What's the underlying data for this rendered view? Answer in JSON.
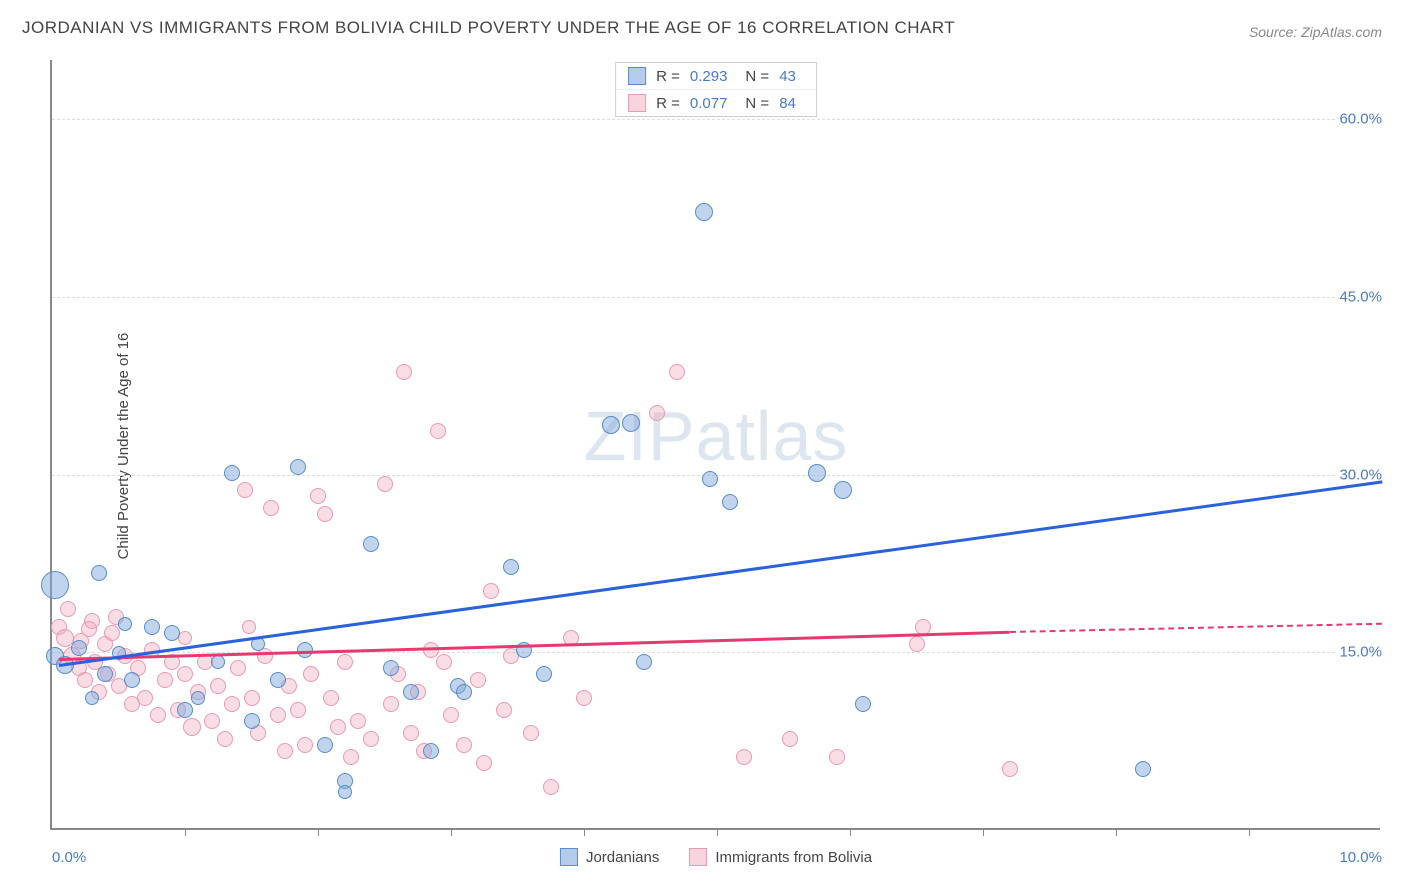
{
  "title": "JORDANIAN VS IMMIGRANTS FROM BOLIVIA CHILD POVERTY UNDER THE AGE OF 16 CORRELATION CHART",
  "source": "Source: ZipAtlas.com",
  "ylabel": "Child Poverty Under the Age of 16",
  "watermark": "ZIPatlas",
  "chart": {
    "type": "scatter",
    "background_color": "#ffffff",
    "grid_color": "#dddddd",
    "axis_color": "#888888",
    "xlim": [
      0,
      10
    ],
    "ylim": [
      0,
      65
    ],
    "xticks": [
      0,
      1,
      2,
      3,
      4,
      5,
      6,
      7,
      8,
      9,
      10
    ],
    "xtick_labels_shown": {
      "0": "0.0%",
      "10": "10.0%"
    },
    "yticks": [
      15,
      30,
      45,
      60
    ],
    "ytick_labels": [
      "15.0%",
      "30.0%",
      "45.0%",
      "60.0%"
    ],
    "label_fontsize": 15,
    "tick_color": "#4a7ac7"
  },
  "series": {
    "jordanians": {
      "label": "Jordanians",
      "color_fill": "rgba(130,170,220,0.5)",
      "color_stroke": "#5a8cc7",
      "trend_color": "#2962d9",
      "R": "0.293",
      "N": "43",
      "trend": {
        "x0": 0.05,
        "y0": 14.0,
        "x1": 10.0,
        "y1": 29.5
      },
      "points": [
        {
          "x": 0.02,
          "y": 20.5,
          "r": 14
        },
        {
          "x": 0.02,
          "y": 14.5,
          "r": 9
        },
        {
          "x": 0.1,
          "y": 13.8,
          "r": 9
        },
        {
          "x": 0.2,
          "y": 15.2,
          "r": 8
        },
        {
          "x": 0.35,
          "y": 21.5,
          "r": 8
        },
        {
          "x": 0.4,
          "y": 13.0,
          "r": 8
        },
        {
          "x": 0.5,
          "y": 14.8,
          "r": 7
        },
        {
          "x": 0.6,
          "y": 12.5,
          "r": 8
        },
        {
          "x": 0.75,
          "y": 17.0,
          "r": 8
        },
        {
          "x": 0.9,
          "y": 16.5,
          "r": 8
        },
        {
          "x": 1.0,
          "y": 10.0,
          "r": 8
        },
        {
          "x": 1.1,
          "y": 11.0,
          "r": 7
        },
        {
          "x": 1.25,
          "y": 14.0,
          "r": 7
        },
        {
          "x": 1.35,
          "y": 30.0,
          "r": 8
        },
        {
          "x": 1.5,
          "y": 9.0,
          "r": 8
        },
        {
          "x": 1.7,
          "y": 12.5,
          "r": 8
        },
        {
          "x": 1.85,
          "y": 30.5,
          "r": 8
        },
        {
          "x": 1.9,
          "y": 15.0,
          "r": 8
        },
        {
          "x": 2.05,
          "y": 7.0,
          "r": 8
        },
        {
          "x": 2.2,
          "y": 4.0,
          "r": 8
        },
        {
          "x": 2.2,
          "y": 3.0,
          "r": 7
        },
        {
          "x": 2.4,
          "y": 24.0,
          "r": 8
        },
        {
          "x": 2.55,
          "y": 13.5,
          "r": 8
        },
        {
          "x": 2.7,
          "y": 11.5,
          "r": 8
        },
        {
          "x": 2.85,
          "y": 6.5,
          "r": 8
        },
        {
          "x": 3.05,
          "y": 12.0,
          "r": 8
        },
        {
          "x": 3.1,
          "y": 11.5,
          "r": 8
        },
        {
          "x": 3.45,
          "y": 22.0,
          "r": 8
        },
        {
          "x": 3.55,
          "y": 15.0,
          "r": 8
        },
        {
          "x": 3.7,
          "y": 13.0,
          "r": 8
        },
        {
          "x": 4.2,
          "y": 34.0,
          "r": 9
        },
        {
          "x": 4.35,
          "y": 34.2,
          "r": 9
        },
        {
          "x": 4.45,
          "y": 14.0,
          "r": 8
        },
        {
          "x": 4.9,
          "y": 52.0,
          "r": 9
        },
        {
          "x": 4.95,
          "y": 29.5,
          "r": 8
        },
        {
          "x": 5.1,
          "y": 27.5,
          "r": 8
        },
        {
          "x": 5.75,
          "y": 30.0,
          "r": 9
        },
        {
          "x": 5.95,
          "y": 28.5,
          "r": 9
        },
        {
          "x": 6.1,
          "y": 10.5,
          "r": 8
        },
        {
          "x": 8.2,
          "y": 5.0,
          "r": 8
        },
        {
          "x": 0.3,
          "y": 11.0,
          "r": 7
        },
        {
          "x": 0.55,
          "y": 17.2,
          "r": 7
        },
        {
          "x": 1.55,
          "y": 15.5,
          "r": 7
        }
      ]
    },
    "bolivia": {
      "label": "Immigrants from Bolivia",
      "color_fill": "rgba(240,170,190,0.4)",
      "color_stroke": "#e89ab0",
      "trend_color": "#e6396f",
      "R": "0.077",
      "N": "84",
      "trend_solid": {
        "x0": 0.05,
        "y0": 14.5,
        "x1": 7.2,
        "y1": 16.8
      },
      "trend_dash": {
        "x0": 7.2,
        "y0": 16.8,
        "x1": 10.0,
        "y1": 17.5
      },
      "points": [
        {
          "x": 0.05,
          "y": 17.0,
          "r": 8
        },
        {
          "x": 0.1,
          "y": 16.0,
          "r": 9
        },
        {
          "x": 0.15,
          "y": 14.5,
          "r": 9
        },
        {
          "x": 0.2,
          "y": 13.5,
          "r": 8
        },
        {
          "x": 0.22,
          "y": 15.8,
          "r": 8
        },
        {
          "x": 0.25,
          "y": 12.5,
          "r": 8
        },
        {
          "x": 0.3,
          "y": 17.5,
          "r": 8
        },
        {
          "x": 0.32,
          "y": 14.0,
          "r": 8
        },
        {
          "x": 0.35,
          "y": 11.5,
          "r": 8
        },
        {
          "x": 0.4,
          "y": 15.5,
          "r": 8
        },
        {
          "x": 0.42,
          "y": 13.0,
          "r": 8
        },
        {
          "x": 0.45,
          "y": 16.5,
          "r": 8
        },
        {
          "x": 0.5,
          "y": 12.0,
          "r": 8
        },
        {
          "x": 0.55,
          "y": 14.5,
          "r": 8
        },
        {
          "x": 0.6,
          "y": 10.5,
          "r": 8
        },
        {
          "x": 0.65,
          "y": 13.5,
          "r": 8
        },
        {
          "x": 0.7,
          "y": 11.0,
          "r": 8
        },
        {
          "x": 0.75,
          "y": 15.0,
          "r": 8
        },
        {
          "x": 0.8,
          "y": 9.5,
          "r": 8
        },
        {
          "x": 0.85,
          "y": 12.5,
          "r": 8
        },
        {
          "x": 0.9,
          "y": 14.0,
          "r": 8
        },
        {
          "x": 0.95,
          "y": 10.0,
          "r": 8
        },
        {
          "x": 1.0,
          "y": 13.0,
          "r": 8
        },
        {
          "x": 1.05,
          "y": 8.5,
          "r": 9
        },
        {
          "x": 1.1,
          "y": 11.5,
          "r": 8
        },
        {
          "x": 1.15,
          "y": 14.0,
          "r": 8
        },
        {
          "x": 1.2,
          "y": 9.0,
          "r": 8
        },
        {
          "x": 1.25,
          "y": 12.0,
          "r": 8
        },
        {
          "x": 1.3,
          "y": 7.5,
          "r": 8
        },
        {
          "x": 1.35,
          "y": 10.5,
          "r": 8
        },
        {
          "x": 1.4,
          "y": 13.5,
          "r": 8
        },
        {
          "x": 1.45,
          "y": 28.5,
          "r": 8
        },
        {
          "x": 1.5,
          "y": 11.0,
          "r": 8
        },
        {
          "x": 1.55,
          "y": 8.0,
          "r": 8
        },
        {
          "x": 1.6,
          "y": 14.5,
          "r": 8
        },
        {
          "x": 1.65,
          "y": 27.0,
          "r": 8
        },
        {
          "x": 1.7,
          "y": 9.5,
          "r": 8
        },
        {
          "x": 1.75,
          "y": 6.5,
          "r": 8
        },
        {
          "x": 1.78,
          "y": 12.0,
          "r": 8
        },
        {
          "x": 1.85,
          "y": 10.0,
          "r": 8
        },
        {
          "x": 1.9,
          "y": 7.0,
          "r": 8
        },
        {
          "x": 1.95,
          "y": 13.0,
          "r": 8
        },
        {
          "x": 2.0,
          "y": 28.0,
          "r": 8
        },
        {
          "x": 2.05,
          "y": 26.5,
          "r": 8
        },
        {
          "x": 2.1,
          "y": 11.0,
          "r": 8
        },
        {
          "x": 2.15,
          "y": 8.5,
          "r": 8
        },
        {
          "x": 2.2,
          "y": 14.0,
          "r": 8
        },
        {
          "x": 2.25,
          "y": 6.0,
          "r": 8
        },
        {
          "x": 2.3,
          "y": 9.0,
          "r": 8
        },
        {
          "x": 2.4,
          "y": 7.5,
          "r": 8
        },
        {
          "x": 2.5,
          "y": 29.0,
          "r": 8
        },
        {
          "x": 2.55,
          "y": 10.5,
          "r": 8
        },
        {
          "x": 2.6,
          "y": 13.0,
          "r": 8
        },
        {
          "x": 2.65,
          "y": 38.5,
          "r": 8
        },
        {
          "x": 2.7,
          "y": 8.0,
          "r": 8
        },
        {
          "x": 2.75,
          "y": 11.5,
          "r": 8
        },
        {
          "x": 2.8,
          "y": 6.5,
          "r": 8
        },
        {
          "x": 2.85,
          "y": 15.0,
          "r": 8
        },
        {
          "x": 2.9,
          "y": 33.5,
          "r": 8
        },
        {
          "x": 2.95,
          "y": 14.0,
          "r": 8
        },
        {
          "x": 3.0,
          "y": 9.5,
          "r": 8
        },
        {
          "x": 3.1,
          "y": 7.0,
          "r": 8
        },
        {
          "x": 3.2,
          "y": 12.5,
          "r": 8
        },
        {
          "x": 3.25,
          "y": 5.5,
          "r": 8
        },
        {
          "x": 3.3,
          "y": 20.0,
          "r": 8
        },
        {
          "x": 3.4,
          "y": 10.0,
          "r": 8
        },
        {
          "x": 3.45,
          "y": 14.5,
          "r": 8
        },
        {
          "x": 3.6,
          "y": 8.0,
          "r": 8
        },
        {
          "x": 3.75,
          "y": 3.5,
          "r": 8
        },
        {
          "x": 3.9,
          "y": 16.0,
          "r": 8
        },
        {
          "x": 4.0,
          "y": 11.0,
          "r": 8
        },
        {
          "x": 4.55,
          "y": 35.0,
          "r": 8
        },
        {
          "x": 4.7,
          "y": 38.5,
          "r": 8
        },
        {
          "x": 5.2,
          "y": 6.0,
          "r": 8
        },
        {
          "x": 5.55,
          "y": 7.5,
          "r": 8
        },
        {
          "x": 5.9,
          "y": 6.0,
          "r": 8
        },
        {
          "x": 6.5,
          "y": 15.5,
          "r": 8
        },
        {
          "x": 6.55,
          "y": 17.0,
          "r": 8
        },
        {
          "x": 7.2,
          "y": 5.0,
          "r": 8
        },
        {
          "x": 0.12,
          "y": 18.5,
          "r": 8
        },
        {
          "x": 0.28,
          "y": 16.8,
          "r": 8
        },
        {
          "x": 0.48,
          "y": 17.8,
          "r": 8
        },
        {
          "x": 1.0,
          "y": 16.0,
          "r": 7
        },
        {
          "x": 1.48,
          "y": 17.0,
          "r": 7
        }
      ]
    }
  },
  "stat_legend_labels": {
    "R": "R =",
    "N": "N ="
  },
  "bottom_legend": [
    "Jordanians",
    "Immigrants from Bolivia"
  ]
}
